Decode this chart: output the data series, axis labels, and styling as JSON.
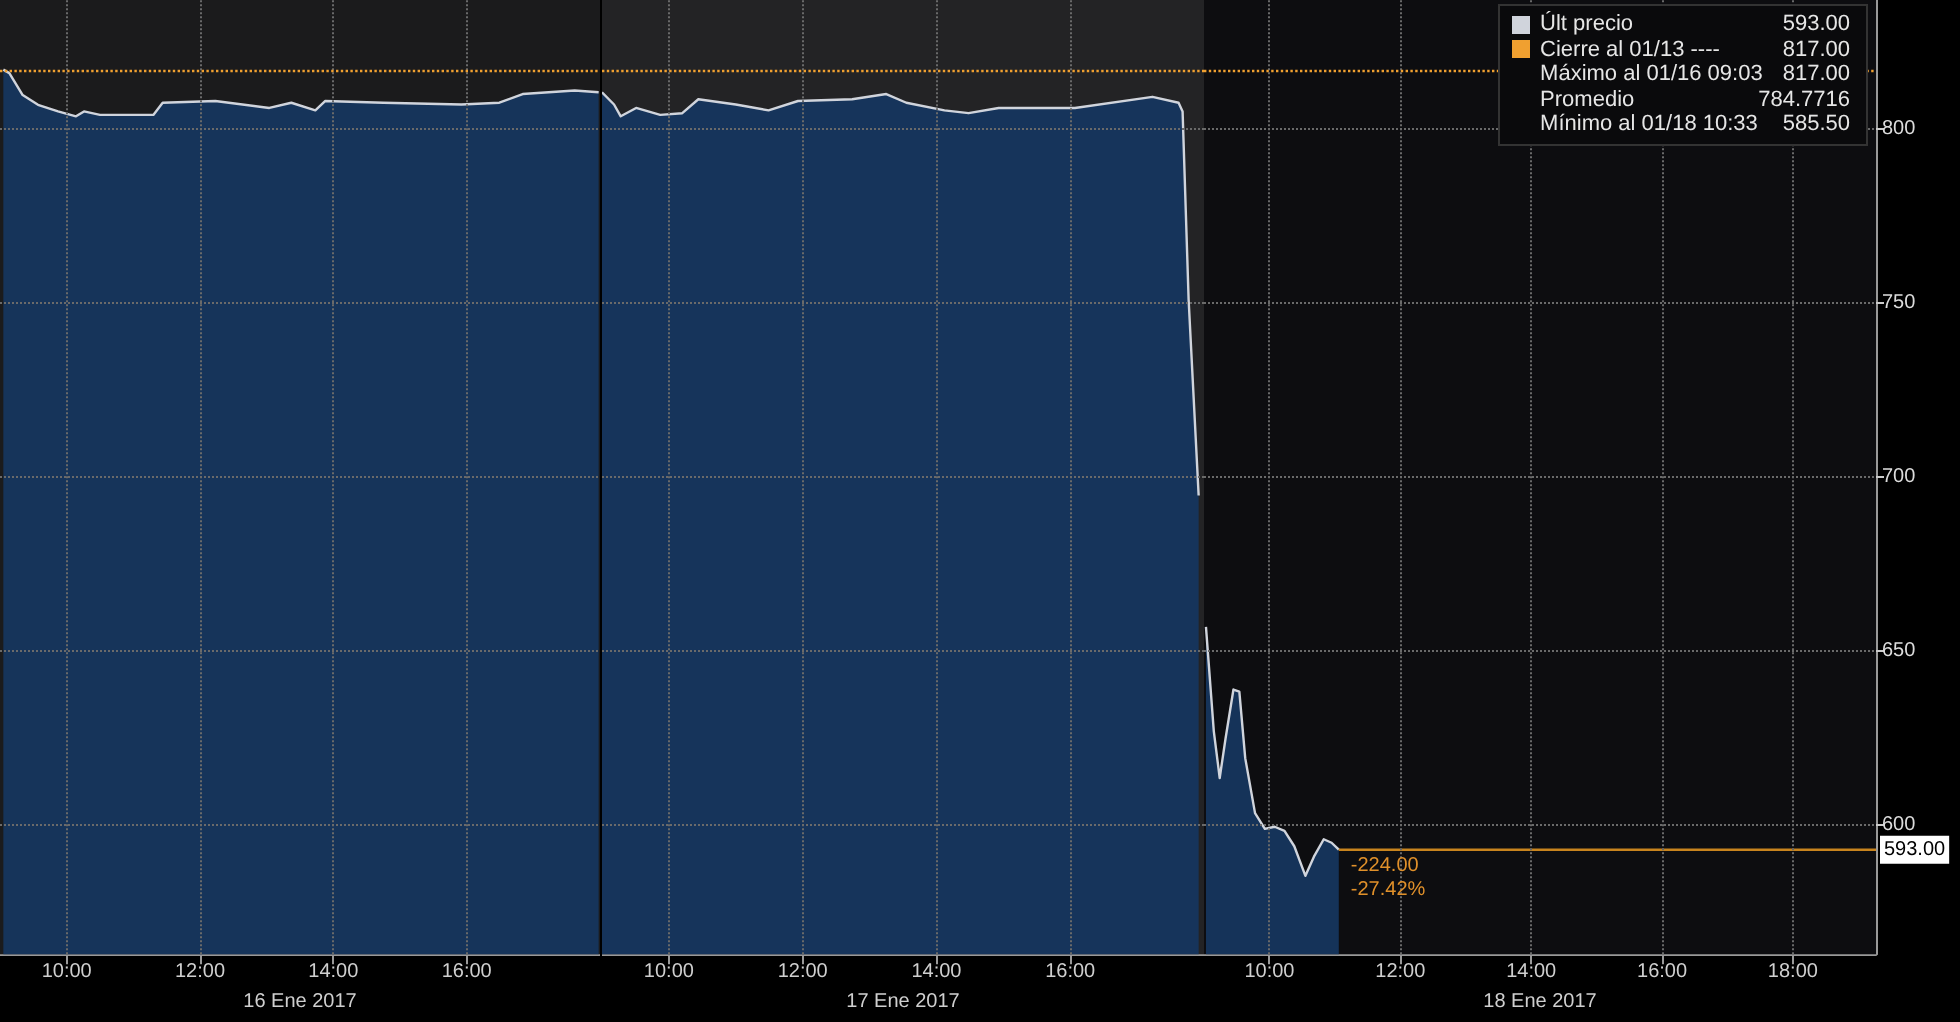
{
  "chart_data": [
    {
      "type": "area",
      "xlabel": "16 Ene 2017",
      "tick_labels": "x",
      "series": [
        {
          "color": "#d0d4dc",
          "x": [
            9.05,
            9.14,
            9.34,
            9.57,
            9.87,
            10.14,
            10.26,
            10.5,
            11.3,
            11.44,
            12.23,
            13.04,
            13.37,
            13.73,
            13.88,
            14.75,
            15.92,
            16.49,
            16.84,
            17.62,
            17.98
          ],
          "values": [
            817,
            816,
            809.7,
            806.9,
            805,
            803.6,
            805,
            804,
            804,
            807.5,
            808,
            806,
            807.5,
            805.3,
            808,
            807.5,
            807,
            807.5,
            810,
            811,
            810.5
          ]
        }
      ],
      "xlim": [
        9,
        18
      ],
      "xticks": [
        {
          "value": 10,
          "label": "10:00"
        },
        {
          "value": 12,
          "label": "12:00"
        },
        {
          "value": 14,
          "label": "14:00"
        },
        {
          "value": 16,
          "label": "16:00"
        }
      ],
      "ylim": [
        563,
        837
      ],
      "yticks": [
        600,
        650,
        700,
        750,
        800
      ],
      "grid": true,
      "ref_lines": [
        {
          "axis": "y",
          "value": 817,
          "color": "#f0a030",
          "line_style": "dotted"
        }
      ],
      "bands": [
        {
          "axis": "x",
          "from": 9,
          "to": 18,
          "color": "#1b1b1c"
        }
      ]
    },
    {
      "type": "area",
      "xlabel": "17 Ene 2017",
      "tick_labels": "x",
      "series": [
        {
          "color": "#d0d4dc",
          "x": [
            9.0,
            9.18,
            9.28,
            9.51,
            9.87,
            10.2,
            10.44,
            11.0,
            11.49,
            11.93,
            12.74,
            13.25,
            13.55,
            14.12,
            14.48,
            14.93,
            16.07,
            17.23,
            17.62,
            17.68,
            17.77,
            17.92
          ],
          "values": [
            810.5,
            807,
            803.6,
            806,
            804,
            804.5,
            808.5,
            807,
            805.3,
            808,
            808.5,
            810,
            807.5,
            805.3,
            804.5,
            806,
            806,
            809.2,
            807.5,
            805,
            751,
            694.7
          ]
        }
      ],
      "xlim": [
        9,
        18
      ],
      "xticks": [
        {
          "value": 10,
          "label": "10:00"
        },
        {
          "value": 12,
          "label": "12:00"
        },
        {
          "value": 14,
          "label": "14:00"
        },
        {
          "value": 16,
          "label": "16:00"
        }
      ],
      "ylim": [
        563,
        837
      ],
      "yticks": [
        600,
        650,
        700,
        750,
        800
      ],
      "grid": true,
      "ref_lines": [
        {
          "axis": "y",
          "value": 817,
          "color": "#f0a030",
          "line_style": "dotted"
        }
      ],
      "bands": [
        {
          "axis": "x",
          "from": 9,
          "to": 18,
          "color": "#232325"
        }
      ]
    },
    {
      "type": "area",
      "xlabel": "18 Ene 2017",
      "legend": "top right",
      "series": [
        {
          "name": "Últ precio",
          "color": "#d0d4dc",
          "x": [
            9.03,
            9.15,
            9.24,
            9.33,
            9.45,
            9.54,
            9.63,
            9.78,
            9.93,
            10.08,
            10.23,
            10.38,
            10.55,
            10.68,
            10.83,
            10.95,
            11.06
          ],
          "values": [
            657,
            627,
            613.6,
            625,
            639,
            638.4,
            619.3,
            603.5,
            599,
            599.6,
            598.4,
            594,
            585.5,
            591,
            596,
            595,
            593
          ]
        },
        {
          "type": "line",
          "color": "#c8841e",
          "x": [
            11.06,
            19.27
          ],
          "values": [
            593,
            593
          ],
          "value_labels": [
            null,
            "593.00"
          ]
        }
      ],
      "xlim": [
        9,
        19.27
      ],
      "xticks": [
        {
          "value": 10,
          "label": "10:00"
        },
        {
          "value": 12,
          "label": "12:00"
        },
        {
          "value": 14,
          "label": "14:00"
        },
        {
          "value": 16,
          "label": "16:00"
        },
        {
          "value": 18,
          "label": "18:00"
        }
      ],
      "ylim": [
        563,
        837
      ],
      "yticks": [
        600,
        650,
        700,
        750,
        800
      ],
      "grid": true,
      "ref_lines": [
        {
          "axis": "y",
          "value": 817,
          "color": "#f0a030",
          "line_style": "dotted"
        }
      ],
      "bands": [
        {
          "axis": "x",
          "from": 9,
          "to": 19.27,
          "color": "#0d0d10"
        }
      ],
      "annotations": [
        "593.00",
        "Cierre al 01/13 ----",
        "817.00",
        "Máximo al 01/16 09:03",
        "817.00",
        "Promedio",
        "784.7716",
        "Mínimo al 01/18 10:33",
        "585.50",
        {
          "text": "-224.00",
          "x": 11.06,
          "y": 593
        },
        {
          "text": "-27.42%",
          "x": 11.06,
          "y": 593
        }
      ]
    }
  ]
}
